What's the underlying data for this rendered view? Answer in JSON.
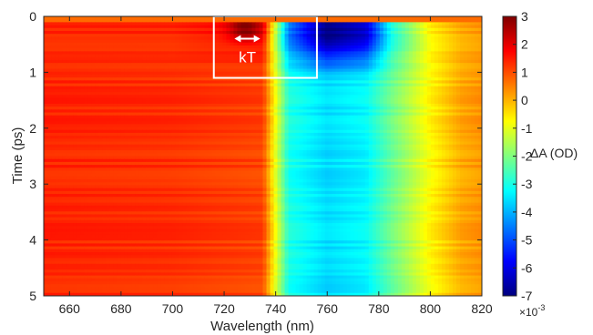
{
  "chart_data": {
    "type": "heatmap",
    "title": "",
    "xlabel": "Wavelength (nm)",
    "ylabel": "Time (ps)",
    "xlim": [
      650,
      820
    ],
    "ylim": [
      0,
      5
    ],
    "y_reversed": true,
    "xticks": [
      "660",
      "680",
      "700",
      "720",
      "740",
      "760",
      "780",
      "800",
      "820"
    ],
    "yticks": [
      "0",
      "1",
      "2",
      "3",
      "4",
      "5"
    ],
    "colorbar": {
      "label": "ΔA (OD)",
      "range": [
        -7,
        3
      ],
      "ticks": [
        "3",
        "2",
        "1",
        "0",
        "-1",
        "-2",
        "-3",
        "-4",
        "-5",
        "-6",
        "-7"
      ],
      "multiplier_base": "×10",
      "multiplier_exp": "-3",
      "colormap": "jet"
    },
    "annotation": {
      "label": "kT",
      "box_x": [
        716,
        756
      ],
      "box_y": [
        0,
        1.1
      ],
      "arrow_x": [
        724,
        734
      ],
      "arrow_y": 0.4
    },
    "colors": {
      "box": "#ffffff",
      "axis": "#262626"
    },
    "profile_wavelength_nm": [
      650,
      700,
      735,
      745,
      760,
      775,
      785,
      800,
      812,
      820
    ],
    "profile_deltaA_late": [
      1.4,
      1.3,
      1.1,
      -3.0,
      -3.6,
      -3.3,
      -2.2,
      -0.7,
      0.1,
      0.3
    ],
    "profile_deltaA_peak": [
      1.4,
      1.4,
      1.8,
      -4.5,
      -7.0,
      -6.2,
      -3.0,
      -0.6,
      0.1,
      0.3
    ],
    "peak_positive_deltaA": 2.8,
    "peak_positive_wavelength_nm": 728
  }
}
